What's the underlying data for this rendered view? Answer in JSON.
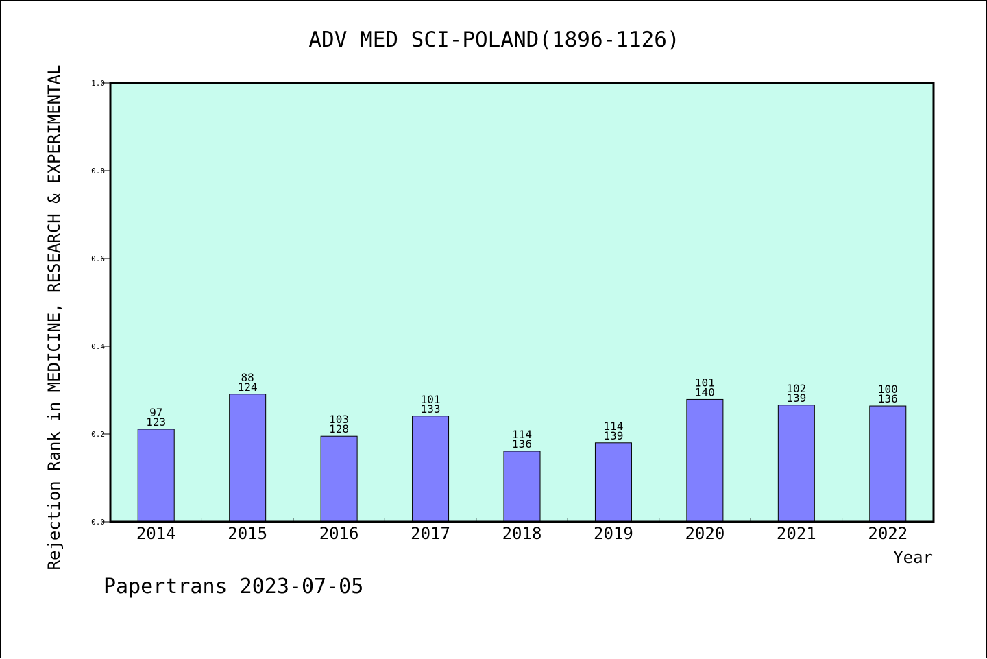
{
  "colors": {
    "plot_background": "#c8fcee",
    "bar_fill": "#8080ff",
    "bar_stroke": "#000000",
    "frame": "#000000"
  },
  "footer": "Papertrans 2023-07-05",
  "chart_data": {
    "type": "bar",
    "title": "ADV MED SCI-POLAND(1896-1126)",
    "xlabel": "Year",
    "ylabel": "Rejection Rank in MEDICINE, RESEARCH & EXPERIMENTAL",
    "ylim": [
      0,
      1.0
    ],
    "yticks": [
      "0.0",
      "0.2",
      "0.4",
      "0.6",
      "0.8",
      "1.0"
    ],
    "categories": [
      "2014",
      "2015",
      "2016",
      "2017",
      "2018",
      "2019",
      "2020",
      "2021",
      "2022"
    ],
    "values": [
      0.211,
      0.291,
      0.195,
      0.241,
      0.161,
      0.18,
      0.279,
      0.266,
      0.264
    ],
    "label_top": [
      "97",
      "88",
      "103",
      "101",
      "114",
      "114",
      "101",
      "102",
      "100"
    ],
    "label_bottom": [
      "123",
      "124",
      "128",
      "133",
      "136",
      "139",
      "140",
      "139",
      "136"
    ],
    "grid": false,
    "legend": "none"
  }
}
